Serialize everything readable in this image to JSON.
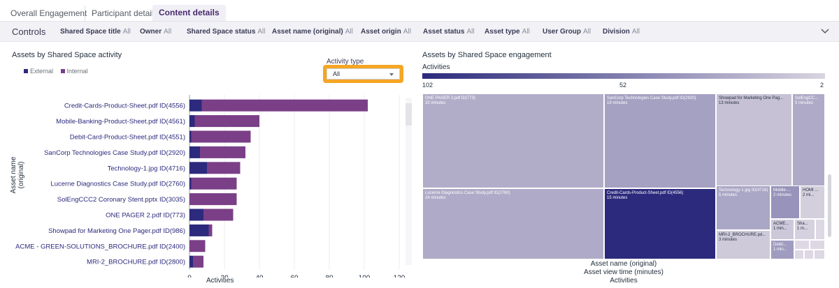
{
  "tabs": [
    "Overall Engagement",
    "Participant details",
    "Content details"
  ],
  "controls": {
    "title": "Controls",
    "filters": [
      {
        "label": "Shared Space title",
        "value": "All"
      },
      {
        "label": "Owner",
        "value": "All"
      },
      {
        "label": "Shared Space status",
        "value": "All"
      },
      {
        "label": "Asset name (original)",
        "value": "All"
      },
      {
        "label": "Asset origin",
        "value": "All"
      },
      {
        "label": "Asset status",
        "value": "All"
      },
      {
        "label": "Asset type",
        "value": "All"
      },
      {
        "label": "User Group",
        "value": "All"
      },
      {
        "label": "Division",
        "value": "All"
      }
    ]
  },
  "activity_type": {
    "label": "Activity type",
    "value": "All"
  },
  "icons": {
    "chevron": "chevron-down-icon",
    "caret": "caret-down-icon"
  },
  "colors": {
    "external": "#2c2a7c",
    "internal": "#7a3f87",
    "accent": "#f5a623"
  },
  "chart_data": [
    {
      "type": "bar",
      "orientation": "horizontal",
      "stacked": true,
      "title": "Assets by Shared Space activity",
      "ylabel": "Asset name (original)",
      "xlabel": "Activities",
      "xlim": [
        0,
        120
      ],
      "xticks": [
        0,
        20,
        40,
        60,
        80,
        100,
        120
      ],
      "legend": "top-left",
      "grid": true,
      "categories": [
        "Credit-Cards-Product-Sheet.pdf ID(4556)",
        "Mobile-Banking-Product-Sheet.pdf ID(4561)",
        "Debit-Card-Product-Sheet.pdf ID(4551)",
        "SanCorp Technologies Case Study.pdf ID(2920)",
        "Technology-1.jpg ID(4716)",
        "Lucerne Diagnostics Case Study.pdf ID(2760)",
        "SolEngCCC2 Coronary Stent.pptx ID(3035)",
        "ONE PAGER 2.pdf ID(773)",
        "Showpad for Marketing One Pager.pdf ID(986)",
        "ACME - GREEN-SOLUTIONS_BROCHURE.pdf ID(2400)",
        "MRI-2_BROCHURE.pdf ID(2800)"
      ],
      "series": [
        {
          "name": "External",
          "values": [
            7,
            3,
            1,
            6,
            10,
            1,
            0,
            8,
            11,
            0,
            2
          ]
        },
        {
          "name": "Internal",
          "values": [
            95,
            37,
            34,
            26,
            19,
            26,
            27,
            17,
            2,
            9,
            6
          ]
        }
      ]
    },
    {
      "type": "treemap",
      "title": "Assets by Shared Space engagement",
      "color_metric": "Activities",
      "color_scale": [
        102,
        52,
        2
      ],
      "xlabel_lines": [
        "Asset name (original)",
        "Asset view time (minutes)",
        "Activities"
      ],
      "cells": [
        {
          "name": "ONE PAGER 2.pdf ID(773)",
          "sub": "32 minutes",
          "activities": 25
        },
        {
          "name": "SanCorp Technologies Case Study.pdf ID(2920)",
          "sub": "19 minutes",
          "activities": 32
        },
        {
          "name": "Showpad for Marketing One Pag...",
          "sub": "13 minutes",
          "activities": 13
        },
        {
          "name": "SolEngCC...",
          "sub": "5 minutes",
          "activities": 27
        },
        {
          "name": "Lucerne Diagnostics Case Study.pdf ID(2760)",
          "sub": "24 minutes",
          "activities": 27
        },
        {
          "name": "Credit-Cards-Product-Sheet.pdf ID(4556)",
          "sub": "15 minutes",
          "activities": 102
        },
        {
          "name": "Technology-1.jpg ID(4716)",
          "sub": "5 minutes",
          "activities": 29
        },
        {
          "name": "Mobile-...",
          "sub": "2 minutes",
          "activities": 40
        },
        {
          "name": "HOMI ...",
          "sub": "2 mi...",
          "activities": 5
        },
        {
          "name": "MRI-2_BROCHURE.pd...",
          "sub": "3 minutes",
          "activities": 8
        },
        {
          "name": "ACME...",
          "sub": "1 min...",
          "activities": 9
        },
        {
          "name": "Sha...",
          "sub": "1 m...",
          "activities": 4
        },
        {
          "name": "Debit...",
          "sub": "1 min...",
          "activities": 35
        }
      ]
    }
  ]
}
